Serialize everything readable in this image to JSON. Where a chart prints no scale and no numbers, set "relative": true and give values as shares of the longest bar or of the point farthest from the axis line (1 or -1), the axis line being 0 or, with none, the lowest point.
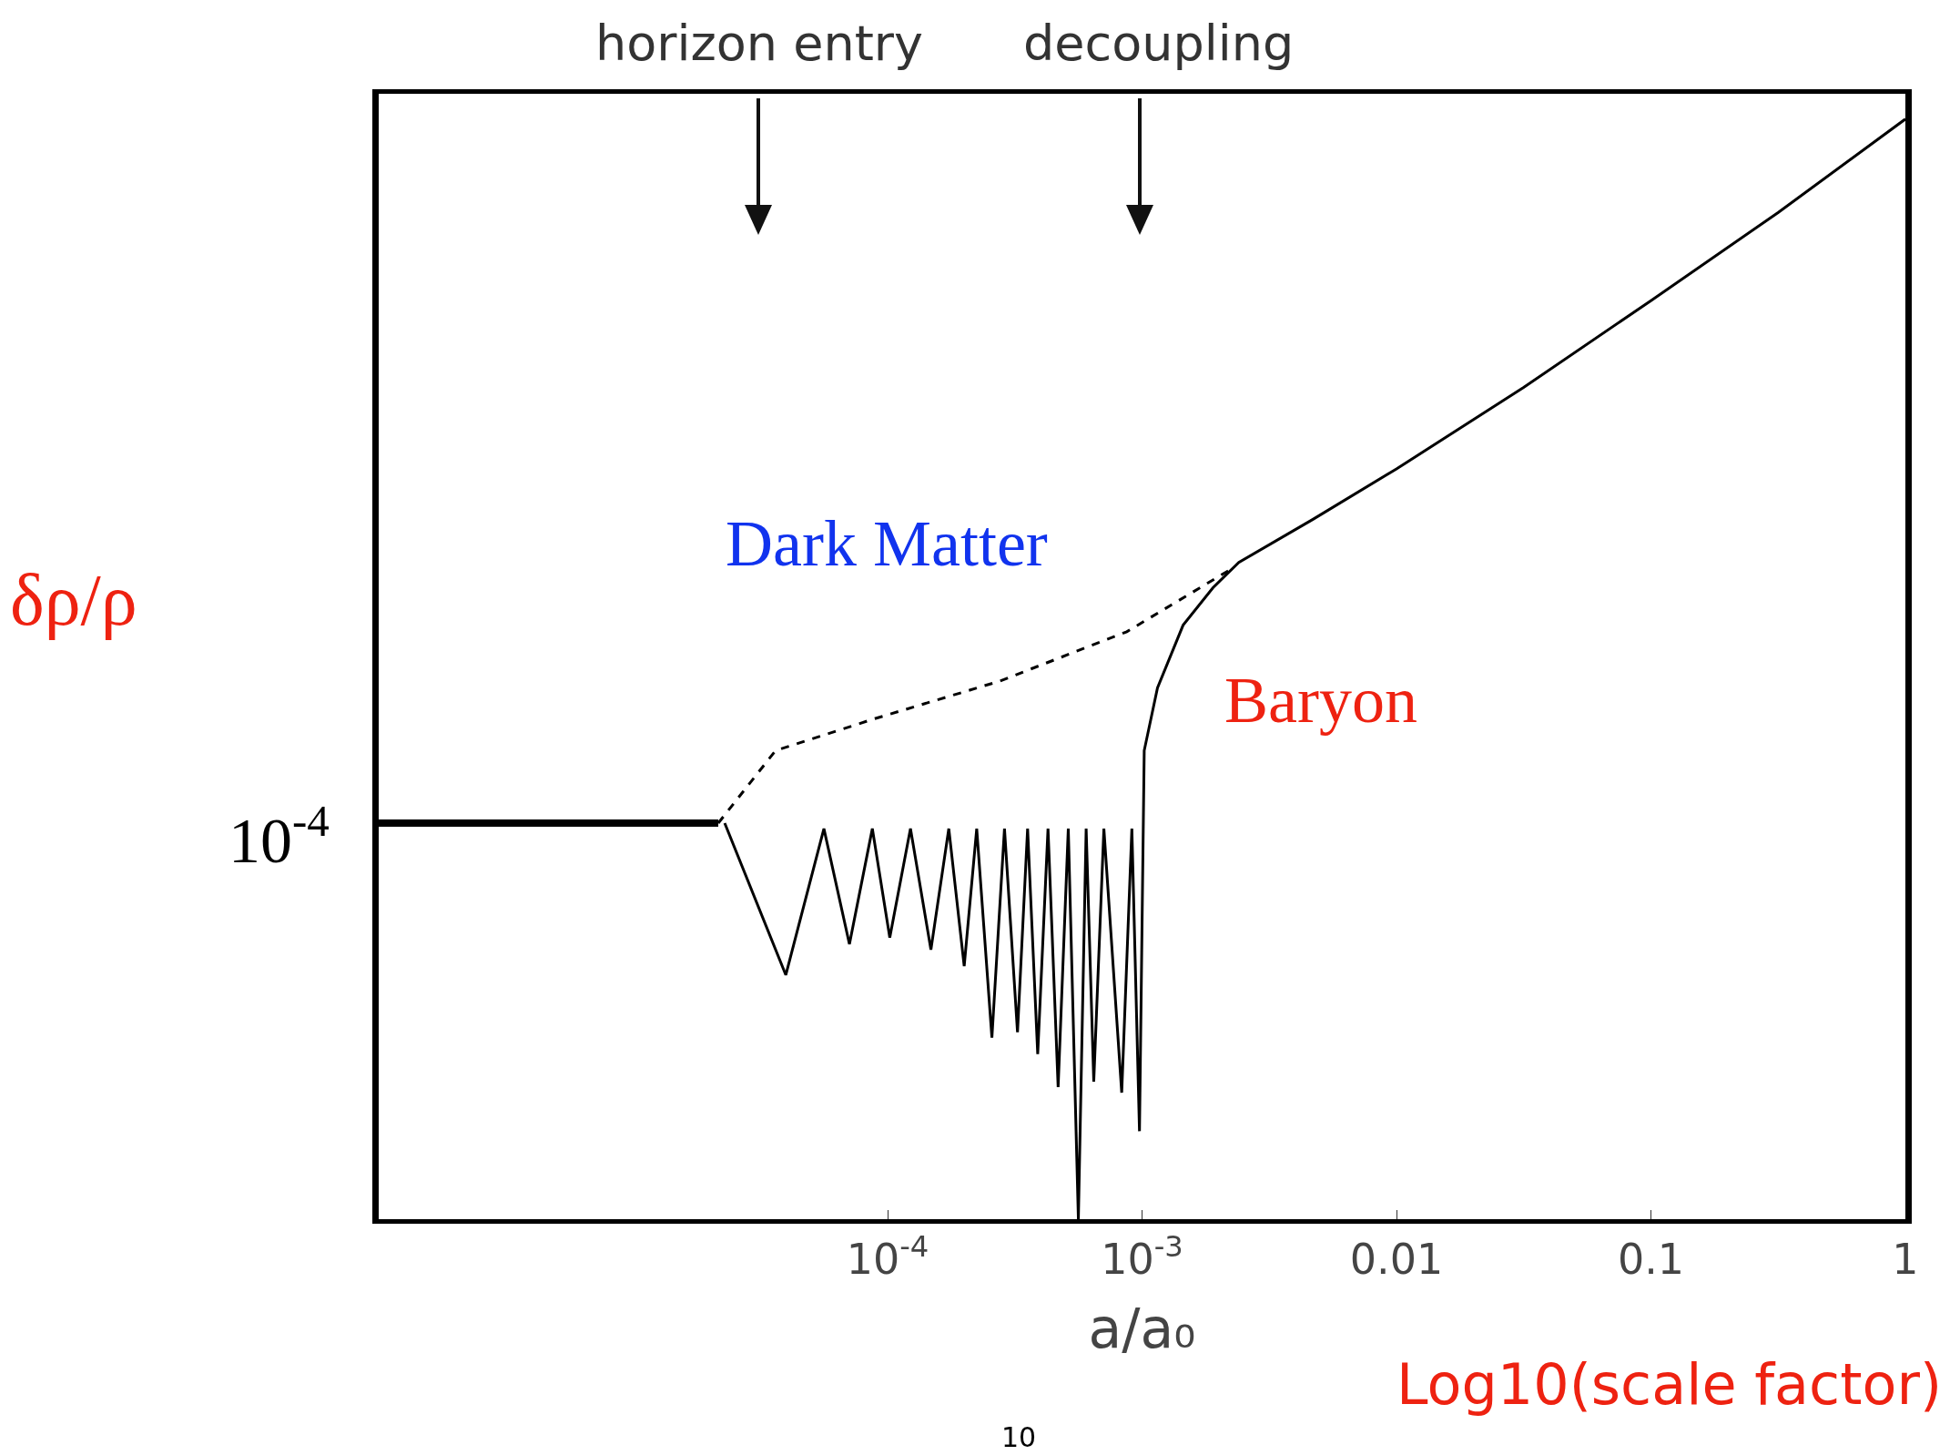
{
  "chart_data": {
    "type": "line",
    "relative": true,
    "log": "x",
    "grid": false,
    "marker": "none",
    "xlabel": "a/a₀",
    "ylabel": "δρ/ρ",
    "xlim": [
      1e-06,
      1
    ],
    "xticks": [
      {
        "value": 0.0001,
        "label": "10$^{-4}$"
      },
      {
        "value": 0.001,
        "label": "10$^{-3}$"
      },
      0.01,
      0.1,
      1
    ],
    "series": [
      {
        "color": "#000000",
        "line_style": "solid",
        "x": [
          1e-06,
          2.16e-05
        ],
        "values": [
          0.36,
          0.36
        ]
      },
      {
        "color": "#000000",
        "line_style": "dashed",
        "x": [
          2.16e-05,
          3.63e-05,
          8.91e-05,
          0.000275,
          0.000871,
          0.00224
        ],
        "values": [
          0.36,
          0.426,
          0.455,
          0.489,
          0.534,
          0.591
        ]
      },
      {
        "color": "#000000",
        "line_style": "solid",
        "x": [
          2.29e-05,
          3.98e-05,
          5.62e-05,
          7.08e-05,
          8.71e-05,
          0.000102,
          0.000123,
          0.000148,
          0.000174,
          0.0002,
          0.000224,
          0.000257,
          0.000288,
          0.000324,
          0.000355,
          0.000389,
          0.000427,
          0.000468,
          0.000513,
          0.000562,
          0.000603,
          0.000646,
          0.000708,
          0.000832,
          0.000912,
          0.000977,
          0.00102,
          0.00115,
          0.00145,
          0.0019,
          0.0024,
          0.00468,
          0.01,
          0.0316,
          0.1,
          0.316,
          1
        ],
        "values": [
          0.36,
          0.222,
          0.355,
          0.25,
          0.355,
          0.256,
          0.355,
          0.245,
          0.355,
          0.23,
          0.355,
          0.165,
          0.355,
          0.17,
          0.355,
          0.15,
          0.355,
          0.12,
          0.355,
          0.0,
          0.355,
          0.125,
          0.355,
          0.115,
          0.355,
          0.08,
          0.426,
          0.483,
          0.54,
          0.574,
          0.597,
          0.636,
          0.682,
          0.756,
          0.835,
          0.915,
          1.0
        ]
      }
    ],
    "annotations": [
      "horizon entry",
      "decoupling",
      "Dark Matter",
      "Baryon",
      "10$^{-4}$",
      "Log10(scale factor)",
      "10"
    ]
  }
}
